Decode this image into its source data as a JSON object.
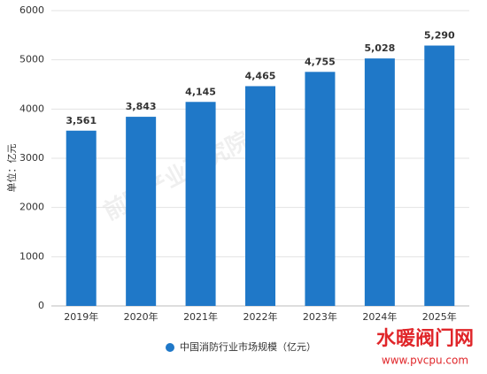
{
  "chart_data": {
    "type": "bar",
    "y_label": "单位：亿元",
    "categories": [
      "2019年",
      "2020年",
      "2021年",
      "2022年",
      "2023年",
      "2024年",
      "2025年"
    ],
    "series": [
      {
        "name": "中国消防行业市场规模（亿元）",
        "color": "#1f78c8",
        "values": [
          3561,
          3843,
          4145,
          4465,
          4755,
          5028,
          5290
        ],
        "value_labels": [
          "3,561",
          "3,843",
          "4,145",
          "4,465",
          "4,755",
          "5,028",
          "5,290"
        ]
      }
    ],
    "ylim": [
      0,
      6000
    ],
    "yticks": [
      0,
      1000,
      2000,
      3000,
      4000,
      5000,
      6000
    ],
    "grid": true,
    "legend": "bottom",
    "watermark": "前瞻产业研究院",
    "logo": [
      "水暖阀门网",
      "www.pvcpu.com"
    ]
  }
}
